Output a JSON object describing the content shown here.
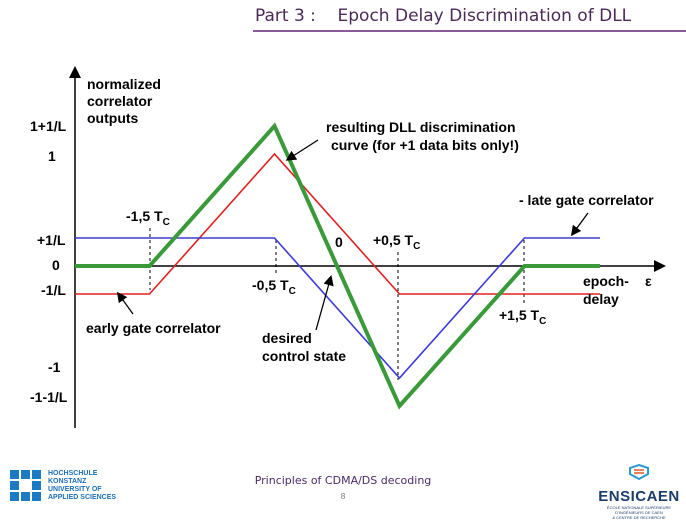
{
  "header": {
    "title": "Part 3 :    Epoch Delay Discrimination of DLL"
  },
  "diagram": {
    "y_axis_label": [
      "normalized",
      "correlator",
      "outputs"
    ],
    "y_ticks": {
      "one_plus": "1+1/L",
      "one": "1",
      "plus_1_over_l": "+1/L",
      "zero": "0",
      "minus_1_over_l": "-1/L",
      "minus_one": "-1",
      "minus_one_minus": "-1-1/L"
    },
    "x_marks": {
      "m15": "-1,5 T",
      "m05": "-0,5 T",
      "p05": "+0,5 T",
      "p15": "+1,5 T",
      "sub": "C",
      "zero": "0"
    },
    "x_axis_label": [
      "epoch-",
      "delay"
    ],
    "epsilon": "ε",
    "annotations": {
      "resulting": [
        "resulting DLL discrimination",
        "curve (for +1 data bits only!)"
      ],
      "late": "- late gate correlator",
      "early": "early gate correlator",
      "desired": [
        "desired",
        "control state"
      ]
    },
    "colors": {
      "early": "#e02020",
      "late": "#3a3ad8",
      "discrimination": "#3a9a3a",
      "axis": "#000000"
    },
    "series": [
      {
        "name": "early gate correlator",
        "color": "#e02020",
        "points": [
          [
            "-inf",
            -0.25
          ],
          [
            -1.5,
            -0.25
          ],
          [
            -0.5,
            1
          ],
          [
            0.5,
            -0.25
          ],
          [
            "+inf",
            -0.25
          ]
        ]
      },
      {
        "name": "late gate correlator",
        "color": "#3a3ad8",
        "points": [
          [
            "-inf",
            0.25
          ],
          [
            -0.5,
            0.25
          ],
          [
            0.5,
            -1
          ],
          [
            1.5,
            0.25
          ],
          [
            "+inf",
            0.25
          ]
        ]
      },
      {
        "name": "resulting DLL discrimination curve",
        "color": "#3a9a3a",
        "points": [
          [
            "-inf",
            0
          ],
          [
            -1.5,
            0
          ],
          [
            -0.5,
            1.25
          ],
          [
            0.5,
            -1.25
          ],
          [
            1.5,
            0
          ],
          [
            "+inf",
            0
          ]
        ]
      }
    ]
  },
  "footer": {
    "title": "Principles of CDMA/DS decoding",
    "page": "8",
    "logo_left_lines": [
      "HOCHSCHULE",
      "KONSTANZ",
      "UNIVERSITY OF",
      "APPLIED SCIENCES"
    ],
    "logo_right_word": "ENSICAEN",
    "logo_right_sub": [
      "ÉCOLE NATIONALE SUPÉRIEURE D'INGÉNIEURS DE CAEN",
      "& CENTRE DE RECHERCHE"
    ]
  }
}
